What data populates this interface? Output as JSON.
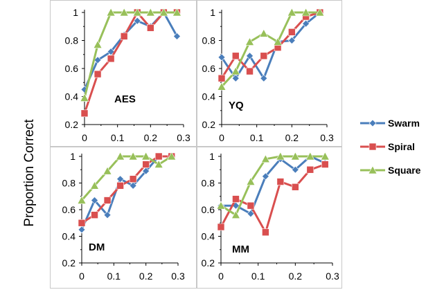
{
  "chart_data": {
    "type": "line",
    "xlim": [
      0,
      0.3
    ],
    "ylim": [
      0.2,
      1
    ],
    "ylabel": "Proportion Correct",
    "x_ticks": [
      "0",
      "0.1",
      "0.2",
      "0.3"
    ],
    "y_ticks": [
      "0.2",
      "0.4",
      "0.6",
      "0.8",
      "1"
    ],
    "legend": {
      "placement": "right",
      "entries": [
        {
          "name": "Swarm",
          "color": "#4a7ebb",
          "marker": "diamond"
        },
        {
          "name": "Spiral",
          "color": "#d94f4f",
          "marker": "square"
        },
        {
          "name": "Square",
          "color": "#98c05a",
          "marker": "triangle"
        }
      ]
    },
    "x": [
      0,
      0.04,
      0.08,
      0.12,
      0.16,
      0.2,
      0.24,
      0.28
    ],
    "panels": [
      {
        "label": "AES",
        "series": [
          {
            "name": "Swarm",
            "values": [
              0.45,
              0.66,
              0.72,
              0.84,
              0.94,
              0.9,
              1.0,
              0.83
            ]
          },
          {
            "name": "Spiral",
            "values": [
              0.28,
              0.56,
              0.67,
              0.83,
              1.0,
              0.89,
              1.0,
              1.0
            ]
          },
          {
            "name": "Square",
            "values": [
              0.39,
              0.77,
              1.0,
              1.0,
              1.0,
              1.0,
              1.0,
              1.0
            ]
          }
        ]
      },
      {
        "label": "YQ",
        "series": [
          {
            "name": "Swarm",
            "values": [
              0.68,
              0.53,
              0.69,
              0.53,
              0.79,
              0.8,
              0.92,
              1.0
            ]
          },
          {
            "name": "Spiral",
            "values": [
              0.53,
              0.69,
              0.58,
              0.69,
              0.75,
              0.86,
              0.97,
              1.0
            ]
          },
          {
            "name": "Square",
            "values": [
              0.47,
              0.58,
              0.79,
              0.85,
              0.79,
              1.0,
              1.0,
              1.0
            ]
          }
        ]
      },
      {
        "label": "DM",
        "series": [
          {
            "name": "Swarm",
            "values": [
              0.45,
              0.67,
              0.56,
              0.83,
              0.78,
              0.89,
              1.0,
              1.0
            ]
          },
          {
            "name": "Spiral",
            "values": [
              0.5,
              0.56,
              0.67,
              0.78,
              0.83,
              0.94,
              1.0,
              1.0
            ]
          },
          {
            "name": "Square",
            "values": [
              0.67,
              0.78,
              0.89,
              1.0,
              1.0,
              1.0,
              0.94,
              1.0
            ]
          }
        ]
      },
      {
        "label": "MM",
        "series": [
          {
            "name": "Swarm",
            "values": [
              0.63,
              0.63,
              0.57,
              0.85,
              0.98,
              0.9,
              1.0,
              0.95
            ]
          },
          {
            "name": "Spiral",
            "values": [
              0.47,
              0.68,
              0.63,
              0.43,
              0.81,
              0.77,
              0.9,
              0.94
            ]
          },
          {
            "name": "Square",
            "values": [
              0.63,
              0.56,
              0.81,
              0.98,
              1.0,
              1.0,
              1.0,
              1.0
            ]
          }
        ]
      }
    ]
  }
}
